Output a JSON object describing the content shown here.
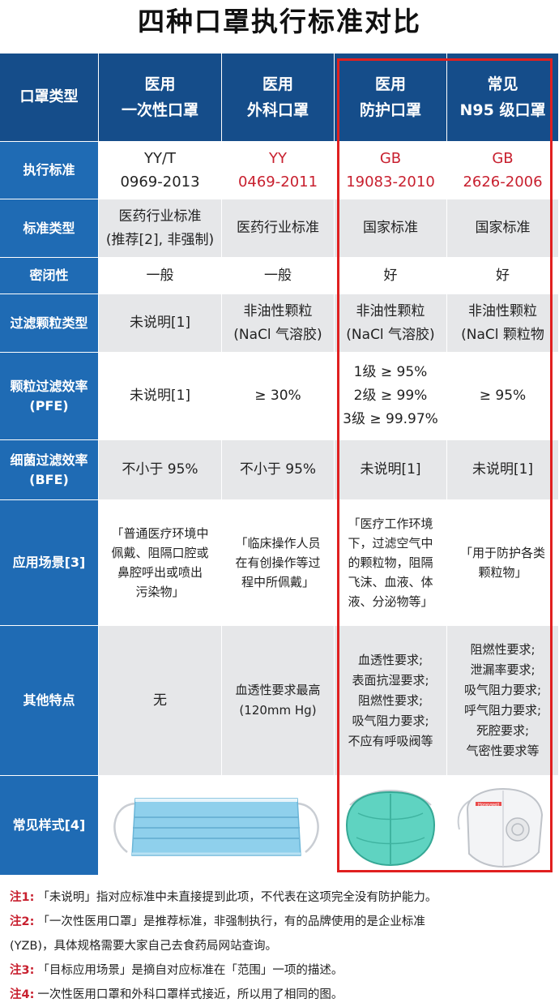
{
  "title": "四种口罩执行标准对比",
  "header": {
    "corner": "口罩类型",
    "columns": [
      "医用\n一次性口罩",
      "医用\n外科口罩",
      "医用\n防护口罩",
      "常见\nN95 级口罩"
    ]
  },
  "rows": [
    {
      "label": "执行标准",
      "values": [
        "YY/T\n0969-2013",
        "YY\n0469-2011",
        "GB\n19083-2010",
        "GB\n2626-2006"
      ]
    },
    {
      "label": "标准类型",
      "values": [
        "医药行业标准\n(推荐[2], 非强制)",
        "医药行业标准",
        "国家标准",
        "国家标准"
      ]
    },
    {
      "label": "密闭性",
      "values": [
        "一般",
        "一般",
        "好",
        "好"
      ]
    },
    {
      "label": "过滤颗粒类型",
      "values": [
        "未说明[1]",
        "非油性颗粒\n(NaCl 气溶胶)",
        "非油性颗粒\n(NaCl 气溶胶)",
        "非油性颗粒\n(NaCl 颗粒物"
      ]
    },
    {
      "label": "颗粒过滤效率\n(PFE)",
      "values": [
        "未说明[1]",
        "≥ 30%",
        "1级 ≥ 95%\n2级 ≥ 99%\n3级 ≥ 99.97%",
        "≥ 95%"
      ]
    },
    {
      "label": "细菌过滤效率\n(BFE)",
      "values": [
        "不小于 95%",
        "不小于 95%",
        "未说明[1]",
        "未说明[1]"
      ]
    },
    {
      "label": "应用场景[3]",
      "values": [
        "「普通医疗环境中\n佩戴、阻隔口腔或\n鼻腔呼出或喷出\n污染物」",
        "「临床操作人员\n在有创操作等过\n程中所佩戴」",
        "「医疗工作环境\n下，过滤空气中\n的颗粒物，阻隔\n飞沫、血液、体\n液、分泌物等」",
        "「用于防护各类\n颗粒物」"
      ]
    },
    {
      "label": "其他特点",
      "values": [
        "无",
        "血透性要求最高\n(120mm Hg)",
        "血透性要求;\n表面抗湿要求;\n阻燃性要求;\n吸气阻力要求;\n不应有呼吸阀等",
        "阻燃性要求;\n泄漏率要求;\n吸气阻力要求;\n呼气阻力要求;\n死腔要求;\n气密性要求等"
      ]
    },
    {
      "label": "常见样式[4]",
      "values": [
        "",
        "",
        "",
        ""
      ]
    }
  ],
  "notes": [
    {
      "key": "注1:",
      "text": "「未说明」指对应标准中未直接提到此项，不代表在这项完全没有防护能力。"
    },
    {
      "key": "注2:",
      "text": "「一次性医用口罩」是推荐标准，非强制执行，有的品牌使用的是企业标准"
    },
    {
      "key": "",
      "text": "(YZB)，具体规格需要大家自己去食药局网站查询。"
    },
    {
      "key": "注3:",
      "text": "「目标应用场景」是摘自对应标准在「范围」一项的描述。"
    },
    {
      "key": "注4:",
      "text": "一次性医用口罩和外科口罩样式接近，所以用了相同的图。"
    }
  ],
  "mask_brand": "Honeywell",
  "colors": {
    "header_bg": "#154d8a",
    "label_bg": "#1f6bb4",
    "highlight": "#e02020",
    "accent_red": "#c8202f",
    "cell_gray": "#e6e7e9"
  }
}
